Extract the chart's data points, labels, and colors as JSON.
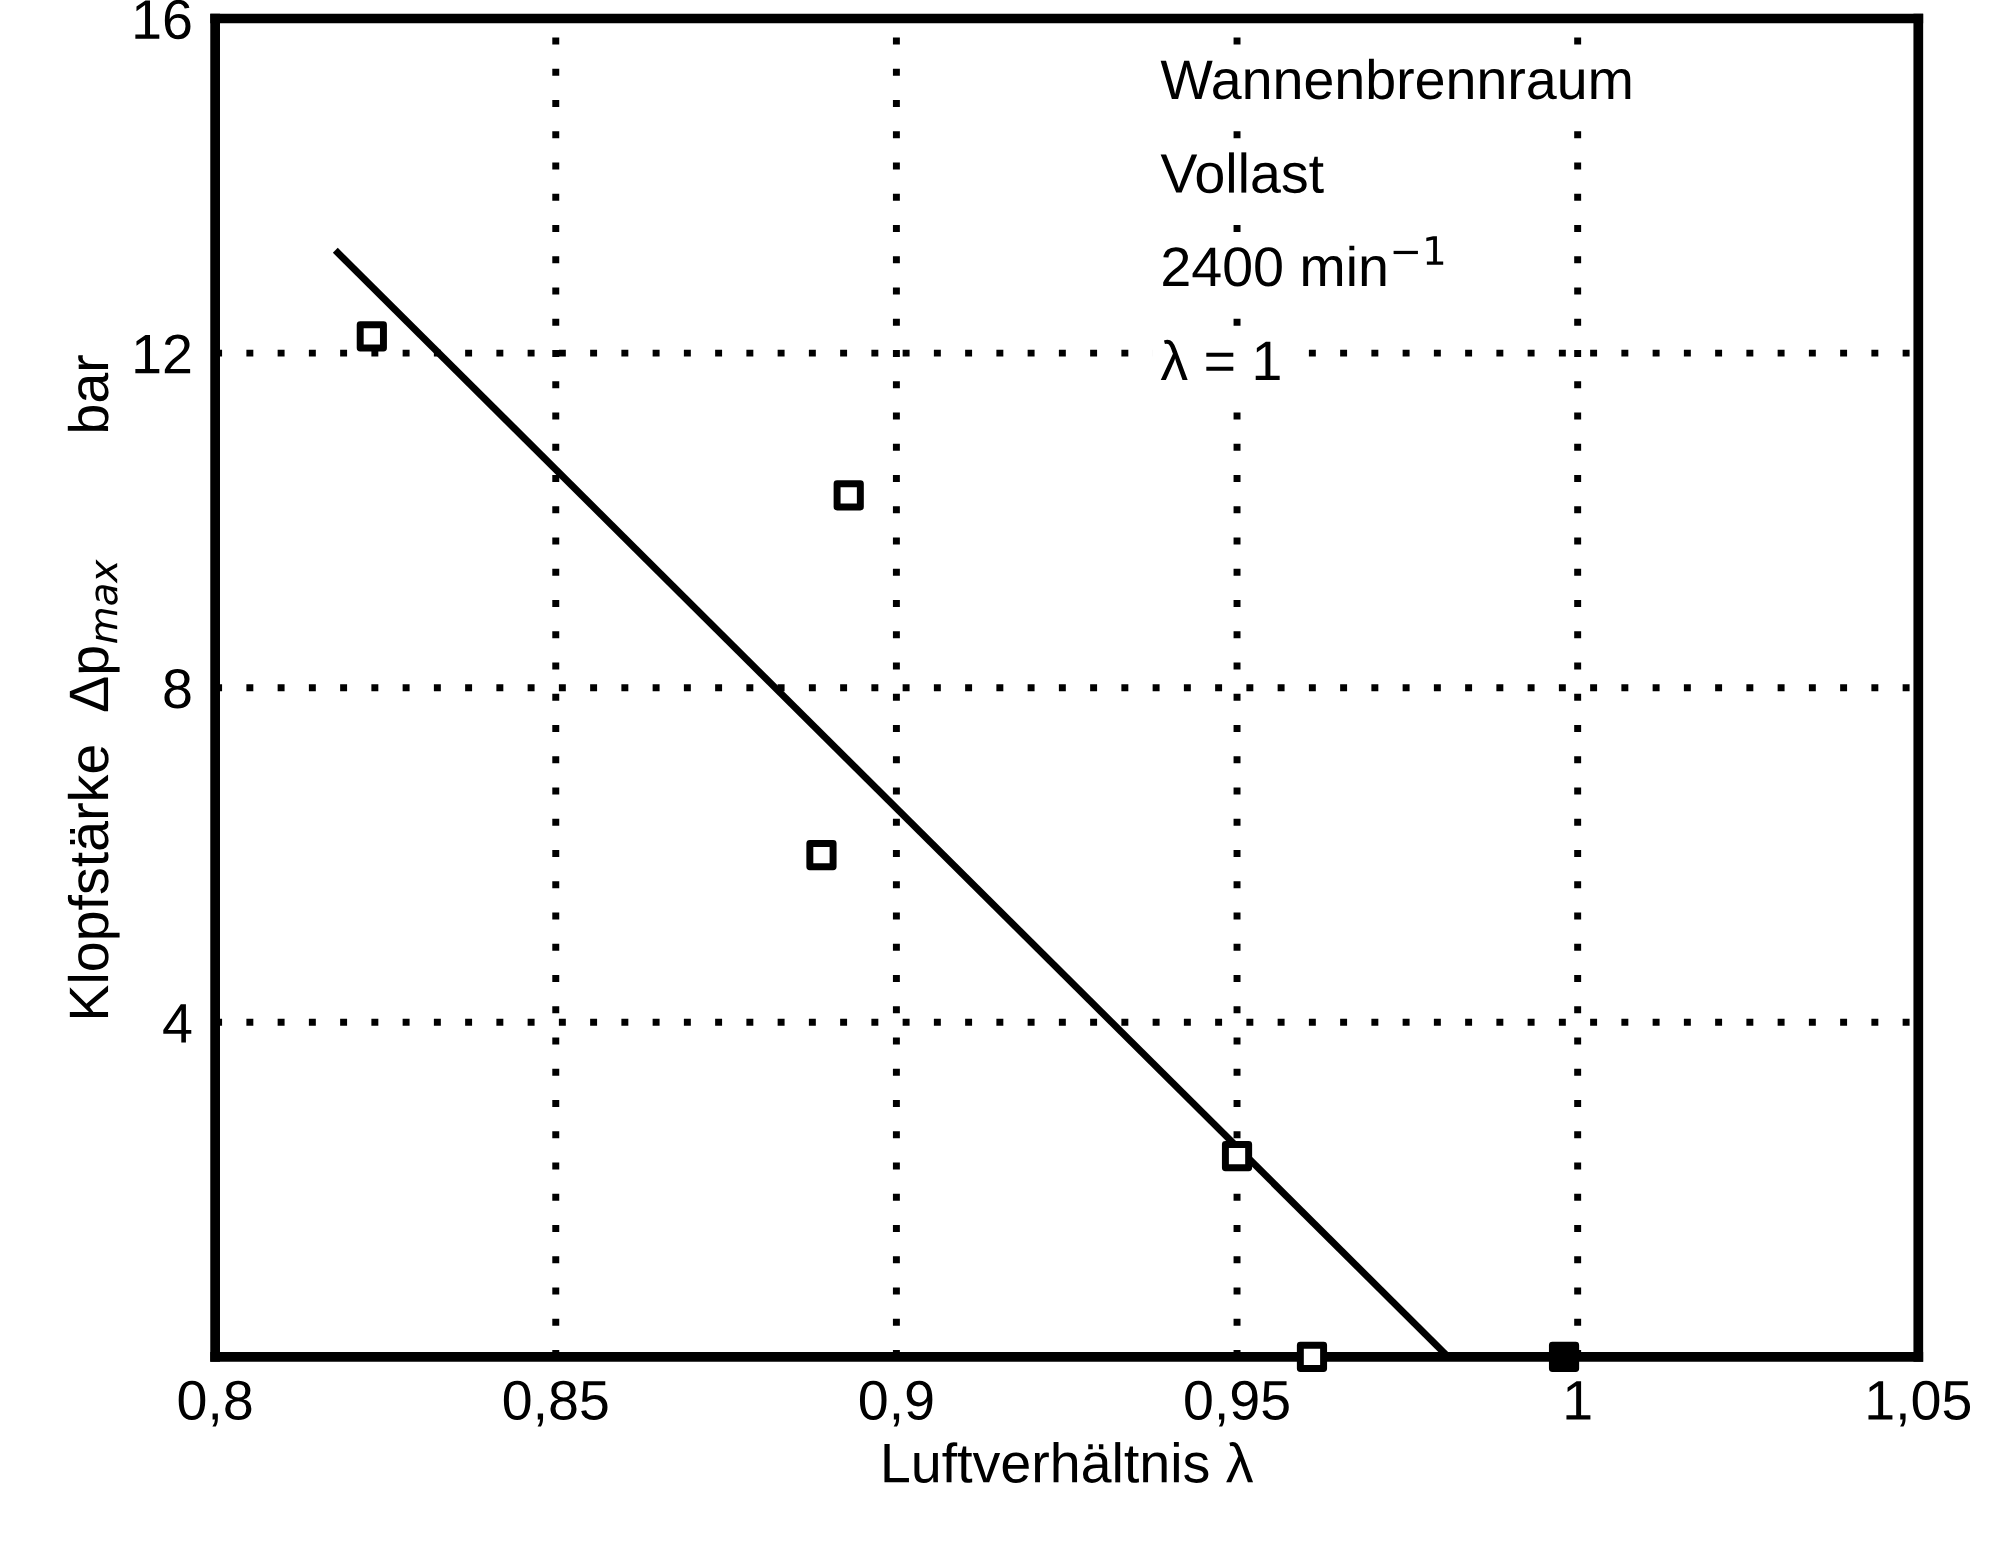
{
  "chart_data": {
    "type": "scatter",
    "xlabel": "Luftverhältnis λ",
    "ylabel": "Klopfstärke  Δp$_{max}$        bar",
    "annotations": [
      "Wannenbrennraum",
      "Vollast",
      "2400 min$^{−1}$",
      "λ = 1"
    ],
    "series": [
      {
        "marker": "square",
        "color": "#000000",
        "colors": [
          "#ffffff",
          "#ffffff",
          "#ffffff",
          "#ffffff",
          "#ffffff",
          "#000000"
        ],
        "x": [
          0.823,
          0.893,
          0.889,
          0.95,
          0.961,
          0.998
        ],
        "values": [
          12.2,
          10.3,
          6.0,
          2.4,
          0,
          0
        ]
      },
      {
        "type": "line",
        "marker": "none",
        "line_style": "solid",
        "color": "#000000",
        "x": [
          0.818,
          0.981
        ],
        "values": [
          13.2,
          0
        ]
      }
    ],
    "xlim": [
      0.8,
      1.05
    ],
    "ylim": [
      0,
      16
    ],
    "xticks": [
      {
        "value": 0.8,
        "label": "0,8"
      },
      {
        "value": 0.85,
        "label": "0,85"
      },
      {
        "value": 0.9,
        "label": "0,9"
      },
      {
        "value": 0.95,
        "label": "0,95"
      },
      {
        "value": 1.0,
        "label": "1"
      },
      {
        "value": 1.05,
        "label": "1,05"
      }
    ],
    "yticks": [
      4,
      8,
      12,
      16
    ],
    "grid": true,
    "legend": false
  }
}
